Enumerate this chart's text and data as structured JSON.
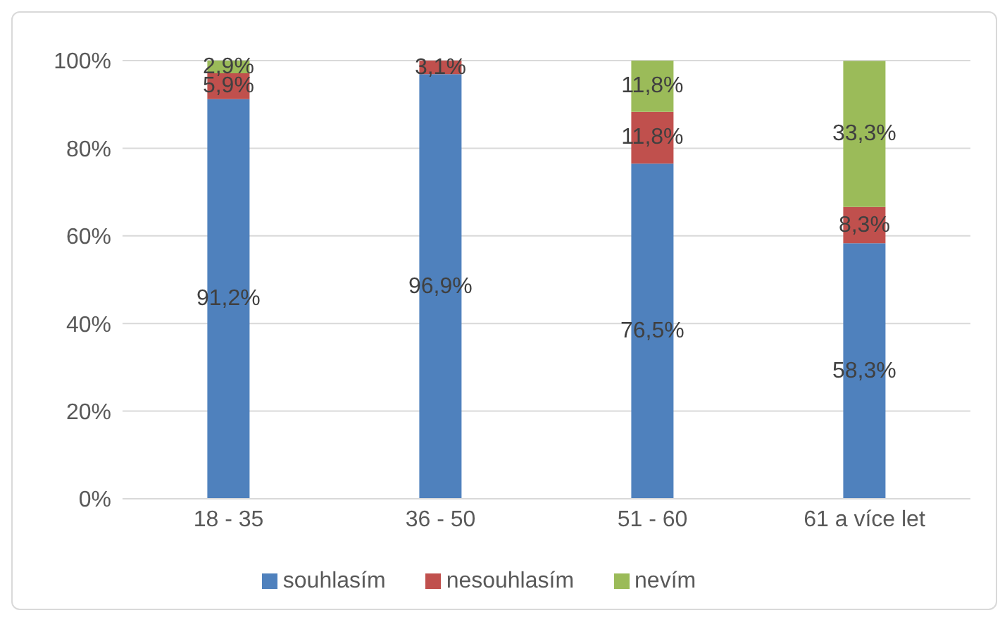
{
  "chart_data": {
    "type": "bar",
    "stacked": true,
    "categories": [
      "18 - 35",
      "36 - 50",
      "51 - 60",
      "61 a více let"
    ],
    "series": [
      {
        "name": "souhlasím",
        "color": "#4f81bd",
        "values": [
          91.2,
          96.9,
          76.5,
          58.3
        ],
        "value_labels": [
          "91,2%",
          "96,9%",
          "76,5%",
          "58,3%"
        ]
      },
      {
        "name": "nesouhlasím",
        "color": "#c0504d",
        "values": [
          5.9,
          3.1,
          11.8,
          8.3
        ],
        "value_labels": [
          "5,9%",
          "3,1%",
          "11,8%",
          "8,3%"
        ]
      },
      {
        "name": "nevím",
        "color": "#9bbb59",
        "values": [
          2.9,
          null,
          11.8,
          33.3
        ],
        "value_labels": [
          "2,9%",
          null,
          "11,8%",
          "33,3%"
        ]
      }
    ],
    "ylim": [
      0,
      100
    ],
    "yticks": [
      {
        "value": 0,
        "label": "0%"
      },
      {
        "value": 20,
        "label": "20%"
      },
      {
        "value": 40,
        "label": "40%"
      },
      {
        "value": 60,
        "label": "60%"
      },
      {
        "value": 80,
        "label": "80%"
      },
      {
        "value": 100,
        "label": "100%"
      }
    ],
    "grid": "y",
    "legend": "bottom"
  }
}
